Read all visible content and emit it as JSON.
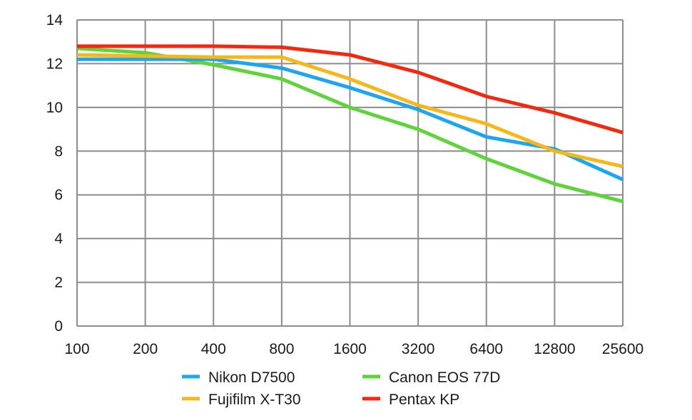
{
  "chart_data": {
    "type": "line",
    "title": "",
    "xlabel": "",
    "ylabel": "",
    "categories": [
      "100",
      "200",
      "400",
      "800",
      "1600",
      "3200",
      "6400",
      "12800",
      "25600"
    ],
    "ylim": [
      0,
      14
    ],
    "yticks": [
      "0",
      "2",
      "4",
      "6",
      "8",
      "10",
      "12",
      "14"
    ],
    "grid": true,
    "legend_position": "bottom",
    "series": [
      {
        "name": "Nikon D7500",
        "color": "#1ea5f0",
        "values": [
          12.2,
          12.2,
          12.2,
          11.8,
          10.9,
          9.9,
          8.65,
          8.1,
          6.7
        ]
      },
      {
        "name": "Fujifilm X-T30",
        "color": "#f7b718",
        "values": [
          12.4,
          12.35,
          12.3,
          12.3,
          11.3,
          10.1,
          9.25,
          8.0,
          7.3
        ]
      },
      {
        "name": "Canon EOS 77D",
        "color": "#5ed33a",
        "values": [
          12.7,
          12.5,
          11.95,
          11.3,
          10.0,
          9.0,
          7.65,
          6.5,
          5.7
        ]
      },
      {
        "name": "Pentax KP",
        "color": "#f2290f",
        "values": [
          12.8,
          12.8,
          12.8,
          12.75,
          12.4,
          11.6,
          10.5,
          9.75,
          8.85
        ]
      }
    ]
  }
}
